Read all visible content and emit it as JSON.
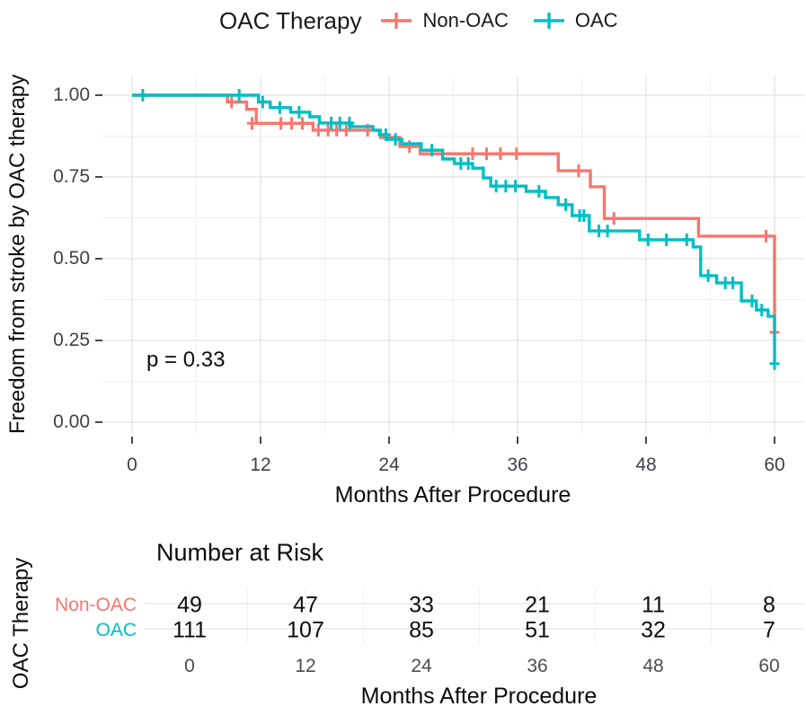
{
  "chart_data": {
    "type": "line",
    "subtype": "kaplan_meier_step",
    "legend_title": "OAC Therapy",
    "xlabel": "Months After Procedure",
    "ylabel": "Freedom from stroke by OAC therapy",
    "p_value_text": "p = 0.33",
    "xlim": [
      0,
      60
    ],
    "ylim": [
      0.0,
      1.0
    ],
    "grid": true,
    "legend_position": "top",
    "x_ticks": [
      0,
      12,
      24,
      36,
      48,
      60
    ],
    "x_tick_labels": [
      "0",
      "12",
      "24",
      "36",
      "48",
      "60"
    ],
    "x_minor_ticks": [
      6,
      18,
      30,
      42,
      54
    ],
    "y_ticks": [
      0.0,
      0.25,
      0.5,
      0.75,
      1.0
    ],
    "y_tick_labels": [
      "0.00",
      "0.25",
      "0.50",
      "0.75",
      "1.00"
    ],
    "y_minor_ticks": [
      0.125,
      0.375,
      0.625,
      0.875
    ],
    "series": [
      {
        "name": "Non-OAC",
        "color": "#F8766D",
        "steps": [
          [
            0,
            1.0
          ],
          [
            8.9,
            0.979
          ],
          [
            10.7,
            0.957
          ],
          [
            11.6,
            0.914
          ],
          [
            16.9,
            0.893
          ],
          [
            23.2,
            0.871
          ],
          [
            25.0,
            0.843
          ],
          [
            26.9,
            0.821
          ],
          [
            39.8,
            0.769
          ],
          [
            42.8,
            0.72
          ],
          [
            44.1,
            0.623
          ],
          [
            52.9,
            0.569
          ],
          [
            60,
            0.275
          ]
        ],
        "censors": [
          [
            9.3,
            0.979
          ],
          [
            11.2,
            0.914
          ],
          [
            13.9,
            0.914
          ],
          [
            14.9,
            0.914
          ],
          [
            15.9,
            0.914
          ],
          [
            17.4,
            0.893
          ],
          [
            18.3,
            0.893
          ],
          [
            19.1,
            0.893
          ],
          [
            20.0,
            0.893
          ],
          [
            22.0,
            0.893
          ],
          [
            25.9,
            0.843
          ],
          [
            31.8,
            0.821
          ],
          [
            33.1,
            0.821
          ],
          [
            34.4,
            0.821
          ],
          [
            35.9,
            0.821
          ],
          [
            41.7,
            0.769
          ],
          [
            45.0,
            0.623
          ],
          [
            59.2,
            0.569
          ],
          [
            60,
            0.275
          ]
        ]
      },
      {
        "name": "OAC",
        "color": "#00BFC4",
        "steps": [
          [
            0,
            1.0
          ],
          [
            11.8,
            0.979
          ],
          [
            12.9,
            0.962
          ],
          [
            14.8,
            0.948
          ],
          [
            16.6,
            0.934
          ],
          [
            17.5,
            0.915
          ],
          [
            20.5,
            0.904
          ],
          [
            22.5,
            0.893
          ],
          [
            23.1,
            0.879
          ],
          [
            23.8,
            0.865
          ],
          [
            25.2,
            0.852
          ],
          [
            27.0,
            0.832
          ],
          [
            29.0,
            0.805
          ],
          [
            30.1,
            0.791
          ],
          [
            31.8,
            0.777
          ],
          [
            32.8,
            0.747
          ],
          [
            33.5,
            0.722
          ],
          [
            36.8,
            0.706
          ],
          [
            38.6,
            0.687
          ],
          [
            39.8,
            0.665
          ],
          [
            41.1,
            0.632
          ],
          [
            42.7,
            0.585
          ],
          [
            47.4,
            0.558
          ],
          [
            52.4,
            0.536
          ],
          [
            53.1,
            0.448
          ],
          [
            54.6,
            0.426
          ],
          [
            56.9,
            0.371
          ],
          [
            58.3,
            0.343
          ],
          [
            59.4,
            0.324
          ],
          [
            60,
            0.179
          ]
        ],
        "censors": [
          [
            1.0,
            1.0
          ],
          [
            10.0,
            1.0
          ],
          [
            12.2,
            0.979
          ],
          [
            13.8,
            0.962
          ],
          [
            15.6,
            0.948
          ],
          [
            18.6,
            0.915
          ],
          [
            19.4,
            0.915
          ],
          [
            20.3,
            0.915
          ],
          [
            23.7,
            0.879
          ],
          [
            24.6,
            0.865
          ],
          [
            28.0,
            0.832
          ],
          [
            30.7,
            0.791
          ],
          [
            31.4,
            0.791
          ],
          [
            34.0,
            0.722
          ],
          [
            34.9,
            0.722
          ],
          [
            35.8,
            0.722
          ],
          [
            38.0,
            0.706
          ],
          [
            40.5,
            0.665
          ],
          [
            41.8,
            0.632
          ],
          [
            42.2,
            0.632
          ],
          [
            43.6,
            0.585
          ],
          [
            44.4,
            0.585
          ],
          [
            48.2,
            0.558
          ],
          [
            49.9,
            0.558
          ],
          [
            51.8,
            0.558
          ],
          [
            53.8,
            0.448
          ],
          [
            55.4,
            0.426
          ],
          [
            56.1,
            0.426
          ],
          [
            57.9,
            0.371
          ],
          [
            58.8,
            0.343
          ],
          [
            60,
            0.179
          ]
        ]
      }
    ],
    "risk_table": {
      "title": "Number at Risk",
      "group_axis_label": "OAC Therapy",
      "xlabel": "Months After Procedure",
      "time_points": [
        0,
        12,
        24,
        36,
        48,
        60
      ],
      "time_point_labels": [
        "0",
        "12",
        "24",
        "36",
        "48",
        "60"
      ],
      "rows": [
        {
          "name": "Non-OAC",
          "color": "#F8766D",
          "counts": [
            "49",
            "47",
            "33",
            "21",
            "11",
            "8"
          ]
        },
        {
          "name": "OAC",
          "color": "#00BFC4",
          "counts": [
            "111",
            "107",
            "85",
            "51",
            "32",
            "7"
          ]
        }
      ]
    },
    "colors": {
      "non_oac": "#F8766D",
      "oac": "#00BFC4",
      "grid_major": "#e3e3e3",
      "grid_minor": "#f0f0f0",
      "tick_mark": "#333333",
      "axis_text": "#40404c",
      "risk_axis_text": "#4d4d4d"
    }
  }
}
